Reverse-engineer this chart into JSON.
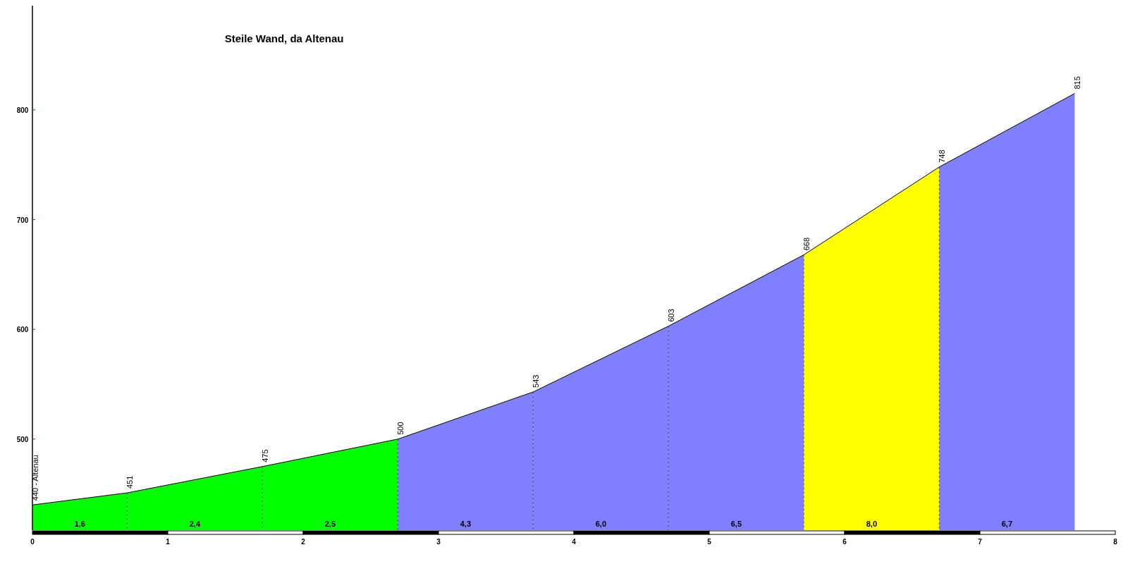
{
  "chart_data": {
    "type": "area",
    "title": "Steile Wand, da Altenau",
    "series": [
      {
        "color": "#00ff00",
        "x": [
          0,
          0.7
        ],
        "values": [
          440,
          451
        ]
      },
      {
        "color": "#00ff00",
        "x": [
          0.7,
          1.7
        ],
        "values": [
          451,
          475
        ]
      },
      {
        "color": "#00ff00",
        "x": [
          1.7,
          2.7
        ],
        "values": [
          475,
          500
        ]
      },
      {
        "color": "#8080ff",
        "x": [
          2.7,
          3.7
        ],
        "values": [
          500,
          543
        ]
      },
      {
        "color": "#8080ff",
        "x": [
          3.7,
          4.7
        ],
        "values": [
          543,
          603
        ]
      },
      {
        "color": "#8080ff",
        "x": [
          4.7,
          5.7
        ],
        "values": [
          603,
          668
        ]
      },
      {
        "color": "#ffff00",
        "x": [
          5.7,
          6.7
        ],
        "values": [
          668,
          748
        ]
      },
      {
        "color": "#8080ff",
        "x": [
          6.7,
          7.7
        ],
        "values": [
          748,
          815
        ]
      },
      {
        "type": "line",
        "color": "#000000",
        "x": [
          0,
          0.7,
          1.7,
          2.7,
          3.7,
          4.7,
          5.7,
          6.7,
          7.7
        ],
        "values": [
          440,
          451,
          475,
          500,
          543,
          603,
          668,
          748,
          815
        ],
        "value_labels": [
          "440 - Altenau",
          "451",
          "475",
          "500",
          "543",
          "603",
          "668",
          "748",
          "815"
        ]
      }
    ],
    "annotations": [
      {
        "text": "1,6",
        "x": 0.35,
        "y": 420
      },
      {
        "text": "2,4",
        "x": 1.2,
        "y": 420
      },
      {
        "text": "2,5",
        "x": 2.2,
        "y": 420
      },
      {
        "text": "4,3",
        "x": 3.2,
        "y": 420
      },
      {
        "text": "6,0",
        "x": 4.2,
        "y": 420
      },
      {
        "text": "6,5",
        "x": 5.2,
        "y": 420
      },
      {
        "text": "8,0",
        "x": 6.2,
        "y": 420
      },
      {
        "text": "6,7",
        "x": 7.2,
        "y": 420
      }
    ],
    "xlim": [
      0,
      8
    ],
    "xticks": [
      0,
      1,
      2,
      3,
      4,
      5,
      6,
      7,
      8
    ],
    "ylim": [
      417,
      895
    ],
    "yticks": [
      500,
      600,
      700,
      800
    ],
    "grid": false
  }
}
